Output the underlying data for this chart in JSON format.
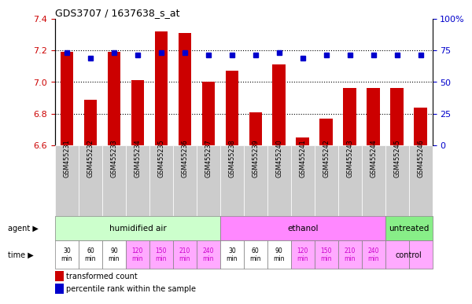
{
  "title": "GDS3707 / 1637638_s_at",
  "samples": [
    "GSM455231",
    "GSM455232",
    "GSM455233",
    "GSM455234",
    "GSM455235",
    "GSM455236",
    "GSM455237",
    "GSM455238",
    "GSM455239",
    "GSM455240",
    "GSM455241",
    "GSM455242",
    "GSM455243",
    "GSM455244",
    "GSM455245",
    "GSM455246"
  ],
  "red_values": [
    7.19,
    6.89,
    7.19,
    7.01,
    7.32,
    7.31,
    7.0,
    7.07,
    6.81,
    7.11,
    6.65,
    6.77,
    6.96,
    6.96,
    6.96,
    6.84
  ],
  "blue_values": [
    73,
    69,
    73,
    71,
    73,
    73,
    71,
    71,
    71,
    73,
    69,
    71,
    71,
    71,
    71,
    71
  ],
  "ylim_left": [
    6.6,
    7.4
  ],
  "ylim_right": [
    0,
    100
  ],
  "yticks_left": [
    6.6,
    6.8,
    7.0,
    7.2,
    7.4
  ],
  "yticks_right": [
    0,
    25,
    50,
    75,
    100
  ],
  "ytick_labels_right": [
    "0",
    "25",
    "50",
    "75",
    "100%"
  ],
  "bar_color": "#cc0000",
  "dot_color": "#0000cc",
  "agent_groups": [
    {
      "label": "humidified air",
      "start": 0,
      "end": 7,
      "color": "#ccffcc"
    },
    {
      "label": "ethanol",
      "start": 7,
      "end": 14,
      "color": "#ff88ff"
    },
    {
      "label": "untreated",
      "start": 14,
      "end": 16,
      "color": "#88ee88"
    }
  ],
  "time_labels": [
    "30\nmin",
    "60\nmin",
    "90\nmin",
    "120\nmin",
    "150\nmin",
    "210\nmin",
    "240\nmin",
    "30\nmin",
    "60\nmin",
    "90\nmin",
    "120\nmin",
    "150\nmin",
    "210\nmin",
    "240\nmin",
    "",
    ""
  ],
  "time_colors_white": [
    true,
    true,
    true,
    false,
    false,
    false,
    false,
    true,
    true,
    true,
    false,
    false,
    false,
    false,
    false,
    false
  ],
  "time_label_colors": [
    "#000000",
    "#000000",
    "#000000",
    "#cc00cc",
    "#cc00cc",
    "#cc00cc",
    "#cc00cc",
    "#000000",
    "#000000",
    "#000000",
    "#cc00cc",
    "#cc00cc",
    "#cc00cc",
    "#cc00cc",
    "#000000",
    "#000000"
  ],
  "time_row_bg": "#ffaaff",
  "time_white_bg": "#ffffff",
  "control_label": "control",
  "control_bg": "#ffccff",
  "label_color_agent": "#000000",
  "label_color_time": "#000000",
  "grid_color": "#000000",
  "bar_width": 0.55,
  "bar_bottom": 6.6,
  "sample_bg": "#cccccc",
  "legend_red": "transformed count",
  "legend_blue": "percentile rank within the sample"
}
